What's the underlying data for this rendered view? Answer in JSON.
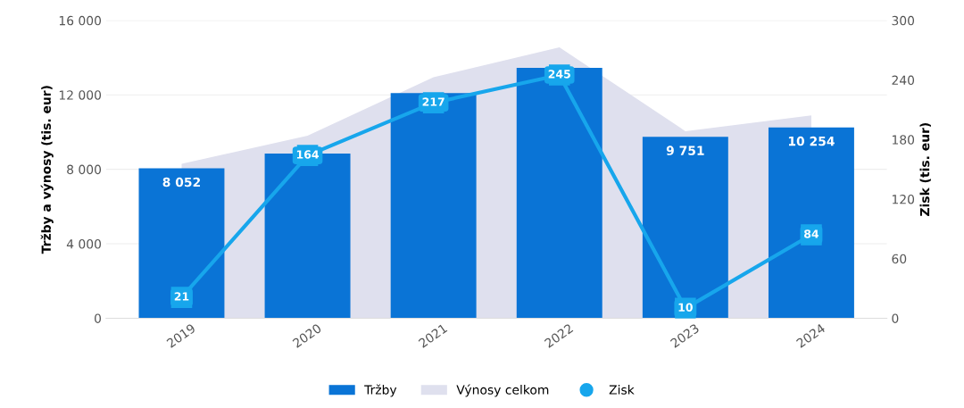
{
  "chart_data": {
    "type": "bar",
    "categories": [
      "2019",
      "2020",
      "2021",
      "2022",
      "2023",
      "2024"
    ],
    "ylabel": "Tržby a výnosy (tis. eur)",
    "y2label": "Zisk (tis. eur)",
    "ylim": [
      0,
      16000
    ],
    "yticks": [
      {
        "value": 0,
        "label": "0"
      },
      {
        "value": 4000,
        "label": "4 000"
      },
      {
        "value": 8000,
        "label": "8 000"
      },
      {
        "value": 12000,
        "label": "12 000"
      },
      {
        "value": 16000,
        "label": "16 000"
      }
    ],
    "y2lim": [
      0,
      300
    ],
    "y2ticks": [
      0,
      60,
      120,
      180,
      240,
      300
    ],
    "grid": "y",
    "legend": "bottom",
    "series": [
      {
        "name": "Výnosy celkom",
        "type": "area",
        "color": "#dfe0ee",
        "values": [
          8300,
          9800,
          12950,
          14550,
          10050,
          10900
        ]
      },
      {
        "name": "Tržby",
        "color": "#0a74d6",
        "values": [
          8052,
          8850,
          12100,
          13450,
          9751,
          10254
        ],
        "value_labels": [
          "8 052",
          null,
          null,
          null,
          "9 751",
          "10 254"
        ]
      },
      {
        "name": "Zisk",
        "type": "line",
        "axis": "y2",
        "color": "#17a6ec",
        "marker": "square",
        "values": [
          21,
          164,
          217,
          245,
          10,
          84
        ],
        "value_labels": [
          "21",
          "164",
          "217",
          "245",
          "10",
          "84"
        ]
      }
    ]
  }
}
